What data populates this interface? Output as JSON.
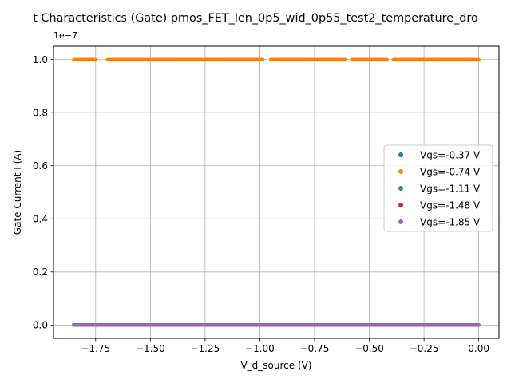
{
  "chart_data": {
    "type": "scatter",
    "title": "t Characteristics (Gate) pmos_FET_len_0p5_wid_0p55_test2_temperature_dro",
    "xlabel": "V_d_source (V)",
    "ylabel": "Gate Current I (A)",
    "y_offset_label": "1e−7",
    "xlim": [
      -1.9425,
      0.0925
    ],
    "ylim": [
      -0.05,
      1.05
    ],
    "y_scale_note": "y values in units of 1e-7 A",
    "grid": true,
    "legend_position": "center-right",
    "x_ticks": [
      -1.75,
      -1.5,
      -1.25,
      -1.0,
      -0.75,
      -0.5,
      -0.25,
      0.0
    ],
    "x_tick_labels": [
      "−1.75",
      "−1.50",
      "−1.25",
      "−1.00",
      "−0.75",
      "−0.50",
      "−0.25",
      "0.00"
    ],
    "y_ticks": [
      0.0,
      0.2,
      0.4,
      0.6,
      0.8,
      1.0
    ],
    "y_tick_labels": [
      "0.0",
      "0.2",
      "0.4",
      "0.6",
      "0.8",
      "1.0"
    ],
    "x_sweep": [
      -1.85,
      0.0
    ],
    "orange_gaps": [
      [
        -1.75,
        -1.7
      ],
      [
        -0.985,
        -0.95
      ],
      [
        -0.61,
        -0.58
      ],
      [
        -0.415,
        -0.39
      ]
    ],
    "series": [
      {
        "name": "Vgs=-0.37 V",
        "color": "#1f77b4",
        "y": 0.0
      },
      {
        "name": "Vgs=-0.74 V",
        "color": "#ff7f0e",
        "y": 1.0
      },
      {
        "name": "Vgs=-1.11 V",
        "color": "#2ca02c",
        "y": 0.0
      },
      {
        "name": "Vgs=-1.48 V",
        "color": "#d62728",
        "y": 0.0
      },
      {
        "name": "Vgs=-1.85 V",
        "color": "#9467bd",
        "y": 0.0
      }
    ]
  }
}
